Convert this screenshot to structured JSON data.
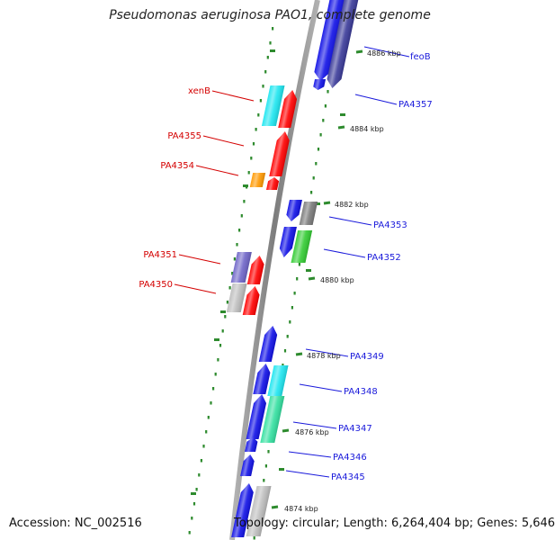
{
  "title": "Pseudomonas aeruginosa PAO1, complete genome",
  "footer": {
    "accession": "Accession: NC_002516",
    "summary": "Topology: circular; Length: 6,264,404 bp; Genes: 5,646"
  },
  "ticks": [
    "4886 kbp",
    "4884 kbp",
    "4882 kbp",
    "4880 kbp",
    "4878 kbp",
    "4876 kbp",
    "4874 kbp"
  ],
  "genes_forward": [
    "feoB",
    "PA4357",
    "PA4353",
    "PA4352",
    "PA4349",
    "PA4348",
    "PA4347",
    "PA4346",
    "PA4345"
  ],
  "genes_reverse": [
    "xenB",
    "PA4355",
    "PA4354",
    "PA4351",
    "PA4350"
  ],
  "colors": {
    "forward_label": "#1a1adb",
    "reverse_label": "#d40000",
    "backbone": "#8c8c8c",
    "gc_dots": "#2e8b2e",
    "blue": "#1010e6",
    "red": "#ff0000",
    "cyan": "#1ee6f0",
    "orange": "#ff9900",
    "grey": "#7a7a7a",
    "lightgrey": "#bdbdbd",
    "green": "#33cc33",
    "purple": "#6f65c8",
    "navy": "#3a3a99",
    "seagreen": "#33e0a0"
  }
}
